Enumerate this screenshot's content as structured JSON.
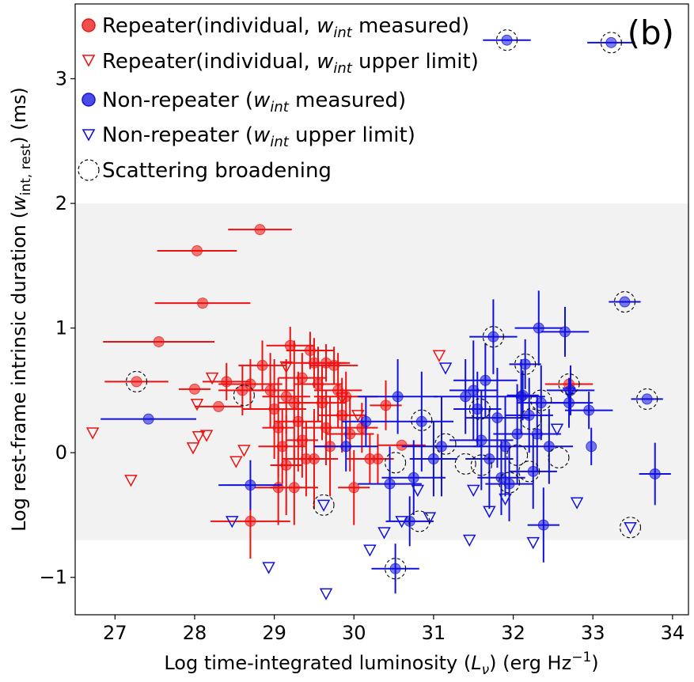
{
  "chart_data": {
    "type": "scatter",
    "panel_label": "(b)",
    "xlabel": "Log time-integrated luminosity (Lν) (erg Hz⁻¹)",
    "xlabel_parts": [
      "Log time-integrated luminosity (",
      "L",
      "ν",
      ") (erg Hz",
      "−1",
      ")"
    ],
    "ylabel": "Log rest-frame intrinsic duration (w_int, rest) (ms)",
    "ylabel_parts": [
      "Log rest-frame intrinsic duration (",
      "w",
      "int, rest",
      ") (ms)"
    ],
    "xlim": [
      26.5,
      34.2
    ],
    "ylim": [
      -1.3,
      3.6
    ],
    "xticks": [
      "27",
      "28",
      "29",
      "30",
      "31",
      "32",
      "33",
      "34"
    ],
    "yticks": [
      "−1",
      "0",
      "1",
      "2",
      "3"
    ],
    "shaded_band": [
      -0.7,
      2.0
    ],
    "colors": {
      "repeater": "#ee1111",
      "nonrepeater": "#1111dd",
      "band": "#f2f2f2"
    },
    "legend": [
      {
        "pre": "Repeater(individual, ",
        "w": "w",
        "sub": "int",
        "post": " measured)",
        "marker": "red-dot"
      },
      {
        "pre": "Repeater(individual, ",
        "w": "w",
        "sub": "int",
        "post": " upper limit)",
        "marker": "red-triangle"
      },
      {
        "pre": "Non-repeater (",
        "w": "w",
        "sub": "int",
        "post": " measured)",
        "marker": "blue-dot"
      },
      {
        "pre": "Non-repeater (",
        "w": "w",
        "sub": "int",
        "post": " upper limit)",
        "marker": "blue-triangle"
      },
      {
        "pre": "Scattering broadening",
        "w": "",
        "sub": "",
        "post": "",
        "marker": "dashed-circle"
      }
    ],
    "series": [
      {
        "name": "Repeater measured",
        "points": [
          [
            28.82,
            1.79,
            0.4,
            0.0
          ],
          [
            28.03,
            1.62,
            0.5,
            0.0
          ],
          [
            28.1,
            1.2,
            0.6,
            0.0
          ],
          [
            27.55,
            0.89,
            0.7,
            0.0
          ],
          [
            27.27,
            0.57,
            0.4,
            0.0
          ],
          [
            28.0,
            0.51,
            0.2,
            0.0
          ],
          [
            28.3,
            0.37,
            0.3,
            0.0
          ],
          [
            28.4,
            0.57,
            0.3,
            0.15
          ],
          [
            28.6,
            0.5,
            0.3,
            0.2
          ],
          [
            28.7,
            0.55,
            0.4,
            0.2
          ],
          [
            28.85,
            0.7,
            0.3,
            0.2
          ],
          [
            28.95,
            0.5,
            0.3,
            0.3
          ],
          [
            29.0,
            0.35,
            0.4,
            0.4
          ],
          [
            29.05,
            0.2,
            0.2,
            0.4
          ],
          [
            29.1,
            0.05,
            0.3,
            0.3
          ],
          [
            29.15,
            -0.1,
            0.2,
            0.4
          ],
          [
            29.2,
            0.86,
            0.3,
            0.15
          ],
          [
            29.25,
            0.4,
            0.2,
            0.5
          ],
          [
            29.3,
            0.25,
            0.3,
            0.4
          ],
          [
            29.35,
            0.1,
            0.2,
            0.3
          ],
          [
            29.4,
            -0.05,
            0.3,
            0.3
          ],
          [
            29.45,
            0.82,
            0.3,
            0.15
          ],
          [
            29.5,
            0.72,
            0.4,
            0.2
          ],
          [
            29.55,
            0.55,
            0.3,
            0.3
          ],
          [
            29.6,
            0.4,
            0.3,
            0.3
          ],
          [
            29.65,
            0.2,
            0.3,
            0.3
          ],
          [
            29.7,
            0.05,
            0.2,
            0.4
          ],
          [
            29.75,
            0.7,
            0.3,
            0.15
          ],
          [
            29.8,
            0.5,
            0.3,
            0.3
          ],
          [
            29.85,
            0.3,
            0.3,
            0.3
          ],
          [
            29.9,
            0.45,
            0.4,
            0.2
          ],
          [
            29.95,
            0.15,
            0.3,
            0.3
          ],
          [
            30.0,
            -0.28,
            0.2,
            0.3
          ],
          [
            30.1,
            0.2,
            0.2,
            0.2
          ],
          [
            30.2,
            -0.05,
            0.3,
            0.2
          ],
          [
            30.3,
            -0.05,
            0.2,
            0.2
          ],
          [
            30.4,
            0.38,
            0.2,
            0.2
          ],
          [
            30.6,
            0.06,
            0.3,
            0.0
          ],
          [
            29.05,
            -0.28,
            0.3,
            0.3
          ],
          [
            29.25,
            -0.28,
            0.3,
            0.3
          ],
          [
            28.7,
            -0.55,
            0.5,
            0.3
          ],
          [
            29.5,
            -0.05,
            0.3,
            0.4
          ],
          [
            29.35,
            0.6,
            0.3,
            0.2
          ],
          [
            29.15,
            0.45,
            0.3,
            0.3
          ],
          [
            29.65,
            0.72,
            0.3,
            0.15
          ],
          [
            32.7,
            0.55,
            0.3,
            0.0
          ]
        ]
      },
      {
        "name": "Repeater upper limit",
        "points": [
          [
            26.72,
            0.16
          ],
          [
            27.2,
            -0.22
          ],
          [
            27.98,
            0.04
          ],
          [
            28.05,
            0.13
          ],
          [
            28.03,
            0.39
          ],
          [
            28.15,
            0.14
          ],
          [
            28.22,
            0.6
          ],
          [
            28.52,
            -0.07
          ],
          [
            28.62,
            0.02
          ],
          [
            29.15,
            0.69
          ],
          [
            29.85,
            0.44
          ],
          [
            30.05,
            0.3
          ],
          [
            31.07,
            0.78
          ]
        ]
      },
      {
        "name": "Non-repeater measured",
        "points": [
          [
            27.42,
            0.27,
            0.6,
            0.0
          ],
          [
            28.7,
            -0.26,
            0.4,
            0.2
          ],
          [
            29.9,
            0.05,
            0.4,
            0.2
          ],
          [
            30.15,
            0.25,
            0.3,
            0.2
          ],
          [
            30.45,
            -0.25,
            0.4,
            0.3
          ],
          [
            30.52,
            -0.93,
            0.3,
            0.2
          ],
          [
            30.55,
            0.45,
            0.5,
            0.3
          ],
          [
            30.7,
            -0.55,
            0.3,
            0.2
          ],
          [
            30.75,
            -0.2,
            0.4,
            0.3
          ],
          [
            30.85,
            0.25,
            0.4,
            0.4
          ],
          [
            31.0,
            -0.05,
            0.3,
            0.3
          ],
          [
            31.1,
            0.05,
            0.5,
            0.4
          ],
          [
            31.4,
            0.45,
            0.4,
            0.3
          ],
          [
            31.5,
            0.5,
            0.3,
            0.4
          ],
          [
            31.55,
            0.35,
            0.3,
            0.3
          ],
          [
            31.6,
            0.1,
            0.4,
            0.4
          ],
          [
            31.65,
            0.58,
            0.4,
            0.3
          ],
          [
            31.7,
            -0.05,
            0.3,
            0.4
          ],
          [
            31.75,
            0.93,
            0.3,
            0.3
          ],
          [
            31.8,
            0.28,
            0.4,
            0.4
          ],
          [
            31.85,
            -0.2,
            0.3,
            0.3
          ],
          [
            31.9,
            0.05,
            0.4,
            0.4
          ],
          [
            31.95,
            -0.25,
            0.3,
            0.3
          ],
          [
            32.05,
            0.15,
            0.3,
            0.4
          ],
          [
            32.1,
            0.45,
            0.3,
            0.3
          ],
          [
            32.15,
            0.71,
            0.2,
            0.2
          ],
          [
            32.2,
            0.3,
            0.3,
            0.3
          ],
          [
            32.25,
            -0.15,
            0.3,
            0.3
          ],
          [
            32.3,
            0.15,
            0.3,
            0.3
          ],
          [
            32.32,
            1.0,
            0.3,
            0.3
          ],
          [
            32.35,
            0.4,
            0.3,
            0.3
          ],
          [
            32.38,
            -0.58,
            0.2,
            0.3
          ],
          [
            32.45,
            0.05,
            0.3,
            0.3
          ],
          [
            32.65,
            0.97,
            0.3,
            0.2
          ],
          [
            32.7,
            0.4,
            0.3,
            0.2
          ],
          [
            32.72,
            0.5,
            0.3,
            0.2
          ],
          [
            32.95,
            0.34,
            0.3,
            0.15
          ],
          [
            32.98,
            0.05,
            0.0,
            0.15
          ],
          [
            33.4,
            1.21,
            0.2,
            0.0
          ],
          [
            33.68,
            0.43,
            0.2,
            0.0
          ],
          [
            33.78,
            -0.17,
            0.2,
            0.25
          ],
          [
            31.92,
            3.31,
            0.3,
            0.0
          ],
          [
            33.23,
            3.29,
            0.3,
            0.0
          ],
          [
            32.12,
            0.46,
            0.2,
            0.2
          ]
        ]
      },
      {
        "name": "Non-repeater upper limit",
        "points": [
          [
            28.47,
            -0.55
          ],
          [
            28.93,
            -0.92
          ],
          [
            29.62,
            -0.42
          ],
          [
            29.65,
            -1.13
          ],
          [
            30.2,
            -0.78
          ],
          [
            30.38,
            -0.64
          ],
          [
            30.8,
            -0.3
          ],
          [
            30.95,
            -0.52
          ],
          [
            31.15,
            0.68
          ],
          [
            31.45,
            -0.7
          ],
          [
            31.5,
            -0.3
          ],
          [
            31.7,
            -0.47
          ],
          [
            31.9,
            -0.37
          ],
          [
            32.25,
            -0.72
          ],
          [
            32.55,
            0.19
          ],
          [
            32.7,
            0.48
          ],
          [
            33.47,
            -0.6
          ],
          [
            32.8,
            -0.4
          ],
          [
            30.6,
            -0.55
          ]
        ]
      }
    ],
    "scattering_broadening": [
      [
        27.27,
        0.57
      ],
      [
        28.62,
        0.46
      ],
      [
        29.62,
        -0.42
      ],
      [
        30.52,
        -0.93
      ],
      [
        30.52,
        -0.08
      ],
      [
        30.82,
        -0.55
      ],
      [
        30.85,
        0.26
      ],
      [
        31.15,
        0.07
      ],
      [
        31.4,
        -0.09
      ],
      [
        31.58,
        0.35
      ],
      [
        31.6,
        -0.1
      ],
      [
        31.75,
        0.93
      ],
      [
        31.95,
        -0.24
      ],
      [
        32.05,
        -0.02
      ],
      [
        32.15,
        0.71
      ],
      [
        32.2,
        -0.15
      ],
      [
        32.22,
        0.27
      ],
      [
        32.35,
        0.42
      ],
      [
        32.57,
        -0.04
      ],
      [
        32.7,
        0.55
      ],
      [
        33.4,
        1.21
      ],
      [
        33.68,
        0.43
      ],
      [
        33.47,
        -0.6
      ],
      [
        31.92,
        3.31
      ],
      [
        33.23,
        3.29
      ]
    ]
  }
}
